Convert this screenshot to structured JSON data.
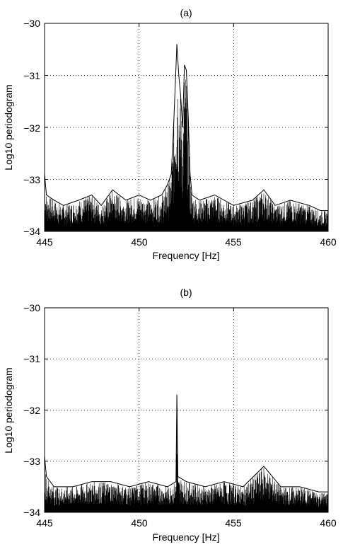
{
  "chart_data": [
    {
      "type": "line",
      "title": "(a)",
      "xlabel": "Frequency [Hz]",
      "ylabel": "Log10 periodogram",
      "xlim": [
        445,
        460
      ],
      "ylim": [
        -34,
        -30
      ],
      "xticks": [
        445,
        450,
        455,
        460
      ],
      "yticks": [
        -30,
        -31,
        -32,
        -33,
        -34
      ],
      "xtick_labels": [
        "445",
        "450",
        "455",
        "460"
      ],
      "ytick_labels": [
        "−30",
        "−31",
        "−32",
        "−33",
        "−34"
      ],
      "grid": true,
      "series": [
        {
          "color": "#000000",
          "points": [
            [
              445.0,
              -32.9
            ],
            [
              445.1,
              -33.3
            ],
            [
              445.5,
              -33.4
            ],
            [
              446.0,
              -33.5
            ],
            [
              446.8,
              -33.4
            ],
            [
              447.5,
              -33.3
            ],
            [
              448.0,
              -33.5
            ],
            [
              448.6,
              -33.2
            ],
            [
              449.3,
              -33.4
            ],
            [
              450.0,
              -33.3
            ],
            [
              450.6,
              -33.4
            ],
            [
              451.2,
              -33.3
            ],
            [
              451.5,
              -33.1
            ],
            [
              451.7,
              -32.9
            ],
            [
              451.8,
              -32.2
            ],
            [
              451.9,
              -31.3
            ],
            [
              452.0,
              -30.4
            ],
            [
              452.1,
              -31.0
            ],
            [
              452.2,
              -31.4
            ],
            [
              452.3,
              -32.0
            ],
            [
              452.4,
              -30.8
            ],
            [
              452.5,
              -30.9
            ],
            [
              452.6,
              -31.8
            ],
            [
              452.7,
              -32.9
            ],
            [
              452.8,
              -33.3
            ],
            [
              453.2,
              -33.4
            ],
            [
              454.0,
              -33.3
            ],
            [
              455.0,
              -33.5
            ],
            [
              456.0,
              -33.4
            ],
            [
              456.6,
              -33.2
            ],
            [
              457.2,
              -33.5
            ],
            [
              458.0,
              -33.4
            ],
            [
              459.0,
              -33.5
            ],
            [
              459.6,
              -33.6
            ],
            [
              460.0,
              -33.6
            ]
          ]
        }
      ]
    },
    {
      "type": "line",
      "title": "(b)",
      "xlabel": "Frequency [Hz]",
      "ylabel": "Log10 periodogram",
      "xlim": [
        445,
        460
      ],
      "ylim": [
        -34,
        -30
      ],
      "xticks": [
        445,
        450,
        455,
        460
      ],
      "yticks": [
        -30,
        -31,
        -32,
        -33,
        -34
      ],
      "xtick_labels": [
        "445",
        "450",
        "455",
        "460"
      ],
      "ytick_labels": [
        "−30",
        "−31",
        "−32",
        "−33",
        "−34"
      ],
      "grid": true,
      "series": [
        {
          "color": "#000000",
          "points": [
            [
              445.0,
              -32.9
            ],
            [
              445.1,
              -33.3
            ],
            [
              445.5,
              -33.5
            ],
            [
              446.5,
              -33.5
            ],
            [
              447.5,
              -33.4
            ],
            [
              448.5,
              -33.4
            ],
            [
              449.5,
              -33.5
            ],
            [
              450.5,
              -33.4
            ],
            [
              451.5,
              -33.5
            ],
            [
              451.95,
              -33.4
            ],
            [
              452.0,
              -31.7
            ],
            [
              452.05,
              -33.3
            ],
            [
              452.5,
              -33.4
            ],
            [
              453.5,
              -33.5
            ],
            [
              454.5,
              -33.4
            ],
            [
              455.5,
              -33.5
            ],
            [
              456.6,
              -33.1
            ],
            [
              457.5,
              -33.5
            ],
            [
              458.5,
              -33.5
            ],
            [
              459.5,
              -33.6
            ],
            [
              460.0,
              -33.6
            ]
          ]
        }
      ]
    }
  ]
}
